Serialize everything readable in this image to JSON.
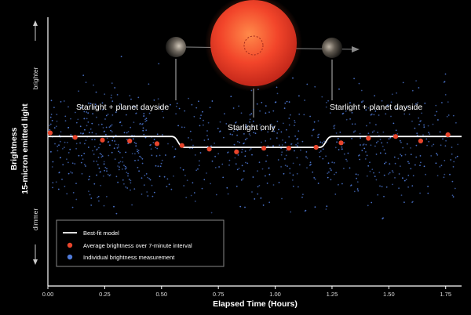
{
  "chart_data": {
    "type": "scatter",
    "title": "",
    "xlabel": "Elapsed Time (Hours)",
    "ylabel_line1": "Brightness",
    "ylabel_line2": "15-micron emitted light",
    "y_top_label": "brighter",
    "y_bottom_label": "dimmer",
    "xlim": [
      0,
      1.82
    ],
    "ylim": [
      -1,
      1
    ],
    "x_ticks": [
      "0.00",
      "0.25",
      "0.50",
      "0.75",
      "1.00",
      "1.25",
      "1.50",
      "1.75"
    ],
    "x_tick_values": [
      0,
      0.25,
      0.5,
      0.75,
      1.0,
      1.25,
      1.5,
      1.75
    ],
    "annotations": {
      "left": "Starlight + planet dayside",
      "center": "Starlight only",
      "right": "Starlight + planet dayside"
    },
    "legend": {
      "model": "Best-fit model",
      "average": "Average brightness over 7-minute interval",
      "individual": "Individual brightness measurement"
    },
    "colors": {
      "model": "#ffffff",
      "average": "#e8452c",
      "individual": "#4f7ad8",
      "star": "#f2452a"
    },
    "series": [
      {
        "name": "Best-fit model",
        "x": [
          0,
          0.545,
          0.6,
          1.195,
          1.25,
          1.82
        ],
        "y": [
          0.12,
          0.12,
          0.0,
          0.0,
          0.12,
          0.12
        ]
      },
      {
        "name": "Average brightness over 7-minute interval",
        "x": [
          0.01,
          0.12,
          0.24,
          0.36,
          0.48,
          0.59,
          0.71,
          0.83,
          0.95,
          1.06,
          1.18,
          1.29,
          1.41,
          1.53,
          1.64,
          1.76
        ],
        "y": [
          0.16,
          0.11,
          0.08,
          0.07,
          0.04,
          0.02,
          -0.02,
          -0.05,
          -0.01,
          -0.01,
          0.0,
          0.05,
          0.1,
          0.12,
          0.07,
          0.14
        ]
      }
    ]
  }
}
